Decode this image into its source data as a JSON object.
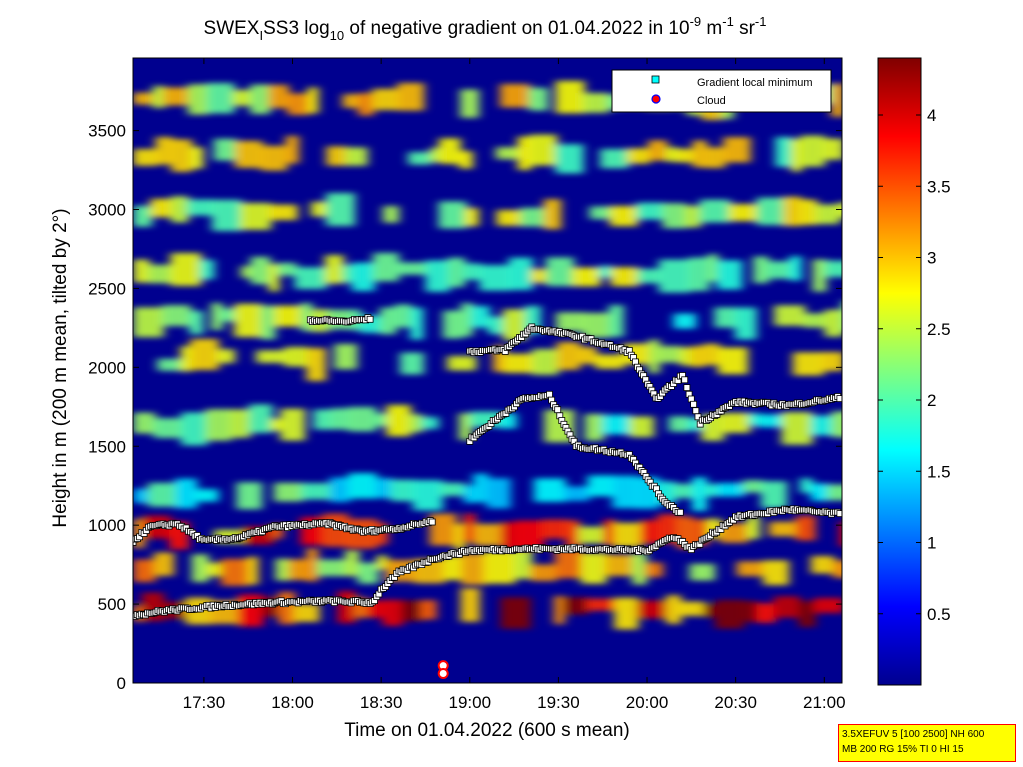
{
  "chart_data": {
    "type": "heatmap",
    "title": {
      "prefix": "SWEX",
      "prefix_sub": "I",
      "main": "SS3 log",
      "main_sub": "10",
      "rest": " of negative gradient on 01.04.2022 in 10",
      "exp1": "-9",
      "unit1": " m",
      "exp2": "-1",
      "unit2": " sr",
      "exp3": "-1"
    },
    "xlabel": "Time on 01.04.2022 (600 s mean)",
    "ylabel": "Height in m (200 m mean, tilted by 2°)",
    "x_ticks": [
      {
        "label": "17:30",
        "hours": 17.5
      },
      {
        "label": "18:00",
        "hours": 18.0
      },
      {
        "label": "18:30",
        "hours": 18.5
      },
      {
        "label": "19:00",
        "hours": 19.0
      },
      {
        "label": "19:30",
        "hours": 19.5
      },
      {
        "label": "20:00",
        "hours": 20.0
      },
      {
        "label": "20:30",
        "hours": 20.5
      },
      {
        "label": "21:00",
        "hours": 21.0
      }
    ],
    "xlim_hours": [
      17.1,
      21.1
    ],
    "ylim": [
      0,
      3960
    ],
    "y_ticks": [
      0,
      500,
      1000,
      1500,
      2000,
      2500,
      3000,
      3500
    ],
    "colorbar": {
      "range": [
        0,
        4.4
      ],
      "ticks": [
        "0.5",
        "1",
        "1.5",
        "2",
        "2.5",
        "3",
        "3.5",
        "4"
      ],
      "tick_values": [
        0.5,
        1,
        1.5,
        2,
        2.5,
        3,
        3.5,
        4
      ],
      "colormap": "jet"
    },
    "legend": {
      "position": "top-right",
      "entries": [
        {
          "label": "Gradient local minimum",
          "marker": "square",
          "color": "#00ffff"
        },
        {
          "label": "Cloud",
          "marker": "circle",
          "color": "#ff0000"
        }
      ]
    },
    "layers": [
      {
        "height_m": 470,
        "level": 4.0
      },
      {
        "height_m": 730,
        "level": 3.0
      },
      {
        "height_m": 960,
        "level": 3.6
      },
      {
        "height_m": 1220,
        "level": 2.0
      },
      {
        "height_m": 1640,
        "level": 2.4
      },
      {
        "height_m": 2050,
        "level": 2.7
      },
      {
        "height_m": 2300,
        "level": 2.4
      },
      {
        "height_m": 2600,
        "level": 2.5
      },
      {
        "height_m": 2980,
        "level": 2.6
      },
      {
        "height_m": 3350,
        "level": 2.7
      },
      {
        "height_m": 3700,
        "level": 2.9
      }
    ],
    "gradient_minima_series": [
      {
        "name": "",
        "points": [
          [
            17.1,
            430
          ],
          [
            17.3,
            460
          ],
          [
            17.6,
            490
          ],
          [
            17.9,
            510
          ],
          [
            18.2,
            520
          ],
          [
            18.45,
            510
          ],
          [
            18.5,
            590
          ],
          [
            18.6,
            700
          ],
          [
            18.8,
            790
          ],
          [
            19.0,
            840
          ],
          [
            19.3,
            850
          ],
          [
            19.6,
            850
          ],
          [
            20.0,
            840
          ],
          [
            20.15,
            930
          ],
          [
            20.25,
            850
          ],
          [
            20.5,
            1050
          ],
          [
            20.8,
            1100
          ],
          [
            21.1,
            1070
          ]
        ]
      },
      {
        "name": "",
        "points": [
          [
            17.1,
            900
          ],
          [
            17.2,
            990
          ],
          [
            17.35,
            1010
          ],
          [
            17.5,
            900
          ],
          [
            17.7,
            920
          ],
          [
            17.9,
            990
          ],
          [
            18.2,
            1010
          ],
          [
            18.4,
            960
          ],
          [
            18.6,
            980
          ],
          [
            18.8,
            1030
          ]
        ]
      },
      {
        "name": "",
        "points": [
          [
            19.0,
            1540
          ],
          [
            19.3,
            1800
          ],
          [
            19.45,
            1820
          ],
          [
            19.6,
            1500
          ],
          [
            19.9,
            1450
          ],
          [
            20.1,
            1150
          ],
          [
            20.2,
            1070
          ]
        ]
      },
      {
        "name": "",
        "points": [
          [
            19.0,
            2100
          ],
          [
            19.2,
            2110
          ],
          [
            19.35,
            2250
          ],
          [
            19.6,
            2200
          ],
          [
            19.9,
            2100
          ],
          [
            20.05,
            1800
          ],
          [
            20.2,
            1950
          ],
          [
            20.3,
            1650
          ],
          [
            20.5,
            1780
          ],
          [
            20.8,
            1760
          ],
          [
            21.1,
            1810
          ]
        ]
      },
      {
        "name": "",
        "points": [
          [
            18.1,
            2300
          ],
          [
            18.3,
            2290
          ],
          [
            18.45,
            2310
          ]
        ]
      }
    ],
    "cloud_points": [
      {
        "time_h": 18.85,
        "height_m": 110
      },
      {
        "time_h": 18.85,
        "height_m": 60
      }
    ]
  },
  "info_box": {
    "line1": "3.5XEFUV 5 [100 2500] NH 600",
    "line2": "MB 200 RG 15% TI 0 HI 15"
  }
}
